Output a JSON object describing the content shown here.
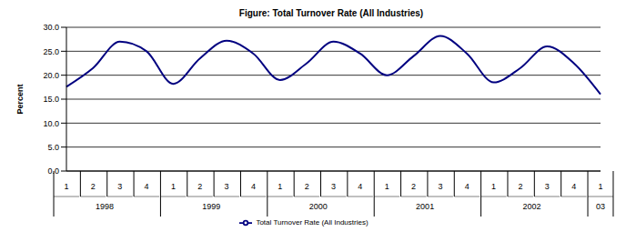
{
  "chart_data": {
    "type": "line",
    "title": "Figure: Total Turnover Rate (All Industries)",
    "y_label": "Percent",
    "categories": [
      "1",
      "2",
      "3",
      "4",
      "1",
      "2",
      "3",
      "4",
      "1",
      "2",
      "3",
      "4",
      "1",
      "2",
      "3",
      "4",
      "1",
      "2",
      "3",
      "4",
      "1"
    ],
    "groups": [
      {
        "label": "1998",
        "span": 4
      },
      {
        "label": "1999",
        "span": 4
      },
      {
        "label": "2000",
        "span": 4
      },
      {
        "label": "2001",
        "span": 4
      },
      {
        "label": "2002",
        "span": 4
      },
      {
        "label": "03",
        "span": 1
      }
    ],
    "series": [
      {
        "name": "Total Turnover Rate (All Industries)",
        "color": "#000080",
        "values": [
          17.6,
          21.5,
          27.0,
          25.0,
          18.2,
          23.5,
          27.2,
          24.5,
          19.0,
          22.5,
          27.0,
          24.5,
          20.0,
          24.0,
          28.2,
          24.5,
          18.5,
          21.5,
          26.0,
          22.5,
          16.0
        ]
      }
    ],
    "ylim": [
      0,
      30
    ],
    "yticks": [
      {
        "value": 0,
        "label": "0.0"
      },
      {
        "value": 5,
        "label": "5.0"
      },
      {
        "value": 10,
        "label": "10.0"
      },
      {
        "value": 15,
        "label": "15.0"
      },
      {
        "value": 20,
        "label": "20.0"
      },
      {
        "value": 25,
        "label": "25.0"
      },
      {
        "value": 30,
        "label": "30.0"
      }
    ],
    "grid": true,
    "legend": "bottom"
  }
}
